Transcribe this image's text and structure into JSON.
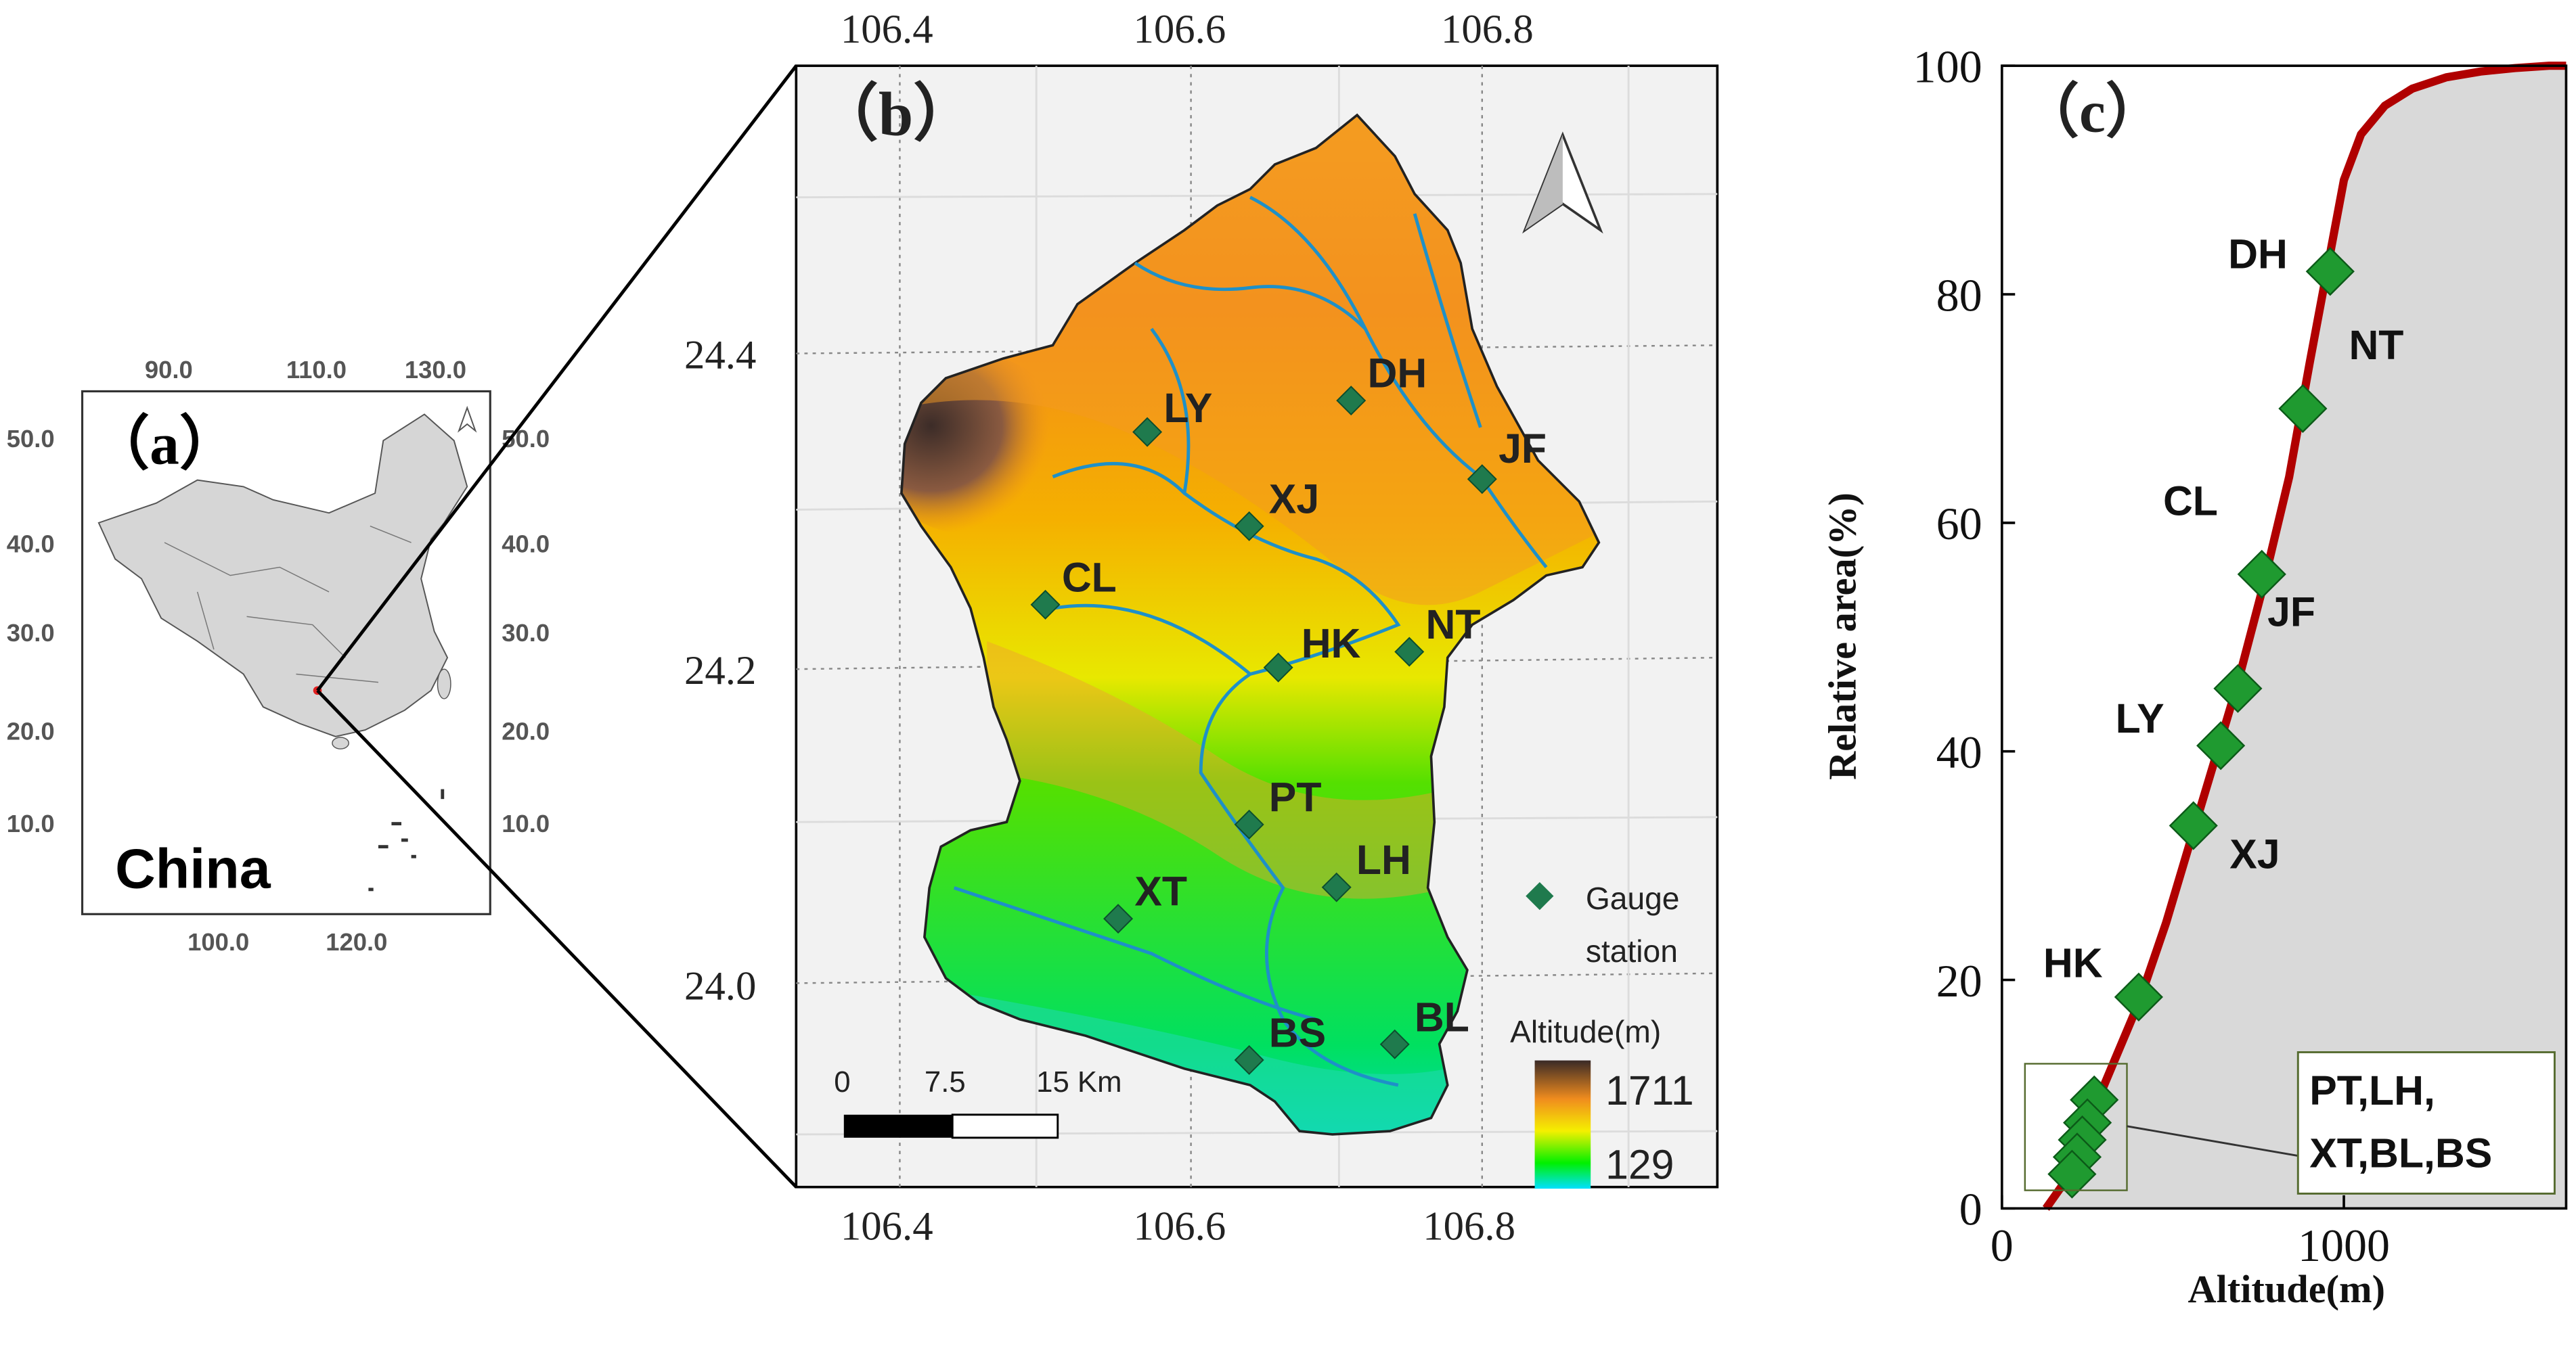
{
  "panel_a": {
    "label": "（a）",
    "country_label": "China",
    "top_ticks": [
      "90.0",
      "110.0",
      "130.0"
    ],
    "bottom_ticks": [
      "100.0",
      "120.0"
    ],
    "left_ticks": [
      "50.0",
      "40.0",
      "30.0",
      "20.0",
      "10.0"
    ],
    "right_ticks": [
      "50.0",
      "40.0",
      "30.0",
      "20.0",
      "10.0"
    ]
  },
  "panel_b": {
    "label": "（b）",
    "top_ticks": [
      "106.4",
      "106.6",
      "106.8"
    ],
    "bottom_ticks": [
      "106.4",
      "106.6",
      "106.8"
    ],
    "left_ticks": [
      "24.4",
      "24.2",
      "24.0"
    ],
    "stations": [
      {
        "code": "LY",
        "lon": 106.57,
        "lat": 24.35
      },
      {
        "code": "DH",
        "lon": 106.71,
        "lat": 24.37
      },
      {
        "code": "JF",
        "lon": 106.8,
        "lat": 24.32
      },
      {
        "code": "XJ",
        "lon": 106.64,
        "lat": 24.29
      },
      {
        "code": "CL",
        "lon": 106.5,
        "lat": 24.24
      },
      {
        "code": "HK",
        "lon": 106.66,
        "lat": 24.2
      },
      {
        "code": "NT",
        "lon": 106.75,
        "lat": 24.21
      },
      {
        "code": "PT",
        "lon": 106.64,
        "lat": 24.1
      },
      {
        "code": "LH",
        "lon": 106.7,
        "lat": 24.06
      },
      {
        "code": "XT",
        "lon": 106.55,
        "lat": 24.04
      },
      {
        "code": "BS",
        "lon": 106.64,
        "lat": 23.95
      },
      {
        "code": "BL",
        "lon": 106.74,
        "lat": 23.96
      }
    ],
    "legend": {
      "line1": "Gauge",
      "line2": "station"
    },
    "scale_bar": {
      "labels": [
        "0",
        "7.5",
        "15 Km"
      ]
    },
    "altitude_legend": {
      "title": "Altitude(m)",
      "max": "1711",
      "min": "129"
    },
    "colors": {
      "low": "#00e07a",
      "mid": "#f7e000",
      "high": "#f08c1e",
      "peak": "#4a3028",
      "station": "#1f7a4d"
    }
  },
  "panel_c": {
    "label": "（c）",
    "inset_labels": [
      "PT,LH,",
      "XT,BL,BS"
    ]
  },
  "chart_data": {
    "type": "line",
    "title": "",
    "xlabel": "Altitude(m)",
    "ylabel": "Relative area(%)",
    "xlim": [
      0,
      1650
    ],
    "ylim": [
      0,
      100
    ],
    "xticks": [
      "0",
      "1000"
    ],
    "yticks": [
      "0",
      "20",
      "40",
      "60",
      "80",
      "100"
    ],
    "curve_color": "#b00000",
    "fill_color": "#d9d9d9",
    "series": [
      {
        "x": [
          129,
          200,
          260,
          330,
          400,
          480,
          550,
          620,
          690,
          760,
          840,
          900,
          950,
          1000,
          1050,
          1120,
          1200,
          1300,
          1400,
          1500,
          1600,
          1650
        ],
        "y": [
          0,
          3,
          8,
          13,
          18,
          25,
          32,
          39,
          46,
          54,
          64,
          74,
          82,
          90,
          94,
          96.5,
          98,
          99,
          99.5,
          99.8,
          100,
          100
        ]
      }
    ],
    "stations": [
      {
        "code": "DH",
        "x": 960,
        "y": 82
      },
      {
        "code": "NT",
        "x": 880,
        "y": 70
      },
      {
        "code": "CL",
        "x": 760,
        "y": 55.5
      },
      {
        "code": "JF",
        "x": 690,
        "y": 45.5
      },
      {
        "code": "LY",
        "x": 640,
        "y": 40.5
      },
      {
        "code": "XJ",
        "x": 560,
        "y": 33.5
      },
      {
        "code": "HK",
        "x": 400,
        "y": 18.5
      },
      {
        "code": "PT",
        "x": 270,
        "y": 9.5
      },
      {
        "code": "LH",
        "x": 250,
        "y": 7.5
      },
      {
        "code": "XT",
        "x": 235,
        "y": 6
      },
      {
        "code": "BL",
        "x": 220,
        "y": 4.5
      },
      {
        "code": "BS",
        "x": 205,
        "y": 3
      }
    ]
  }
}
